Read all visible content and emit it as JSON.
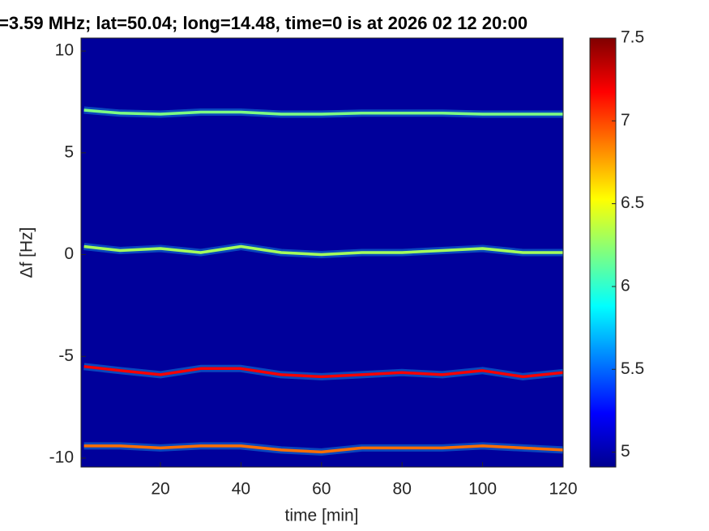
{
  "chart_data": {
    "type": "spectrogram",
    "title": "=3.59 MHz;  lat=50.04; long=14.48, time=0 is at 2026 02 12 20:00",
    "x_label": "time [min]",
    "y_label": "Δf [Hz]",
    "xlim": [
      0.28,
      120
    ],
    "ylim": [
      -10.44,
      10.64
    ],
    "xticks": [
      20,
      40,
      60,
      80,
      100,
      120
    ],
    "yticks": [
      -10,
      -5,
      0,
      5,
      10
    ],
    "clim": [
      4.91,
      7.5
    ],
    "cticks": [
      5,
      5.5,
      6,
      6.5,
      7,
      7.5
    ],
    "colormap": "jet",
    "background_level": 4.98,
    "x": [
      1,
      10,
      20,
      30,
      40,
      50,
      60,
      70,
      80,
      90,
      100,
      110,
      120
    ],
    "series": [
      {
        "level": 6.2,
        "values": [
          7.1,
          6.95,
          6.9,
          7.0,
          7.0,
          6.9,
          6.9,
          6.95,
          6.95,
          6.95,
          6.9,
          6.9,
          6.9
        ]
      },
      {
        "level": 6.3,
        "values": [
          0.4,
          0.2,
          0.3,
          0.1,
          0.4,
          0.1,
          0.0,
          0.1,
          0.1,
          0.2,
          0.3,
          0.1,
          0.1
        ]
      },
      {
        "level": 7.2,
        "values": [
          -5.5,
          -5.7,
          -5.9,
          -5.6,
          -5.6,
          -5.9,
          -6.0,
          -5.9,
          -5.8,
          -5.9,
          -5.7,
          -6.0,
          -5.8
        ]
      },
      {
        "level": 6.9,
        "values": [
          -9.4,
          -9.4,
          -9.5,
          -9.4,
          -9.4,
          -9.6,
          -9.7,
          -9.5,
          -9.5,
          -9.5,
          -9.4,
          -9.5,
          -9.6
        ]
      }
    ]
  }
}
